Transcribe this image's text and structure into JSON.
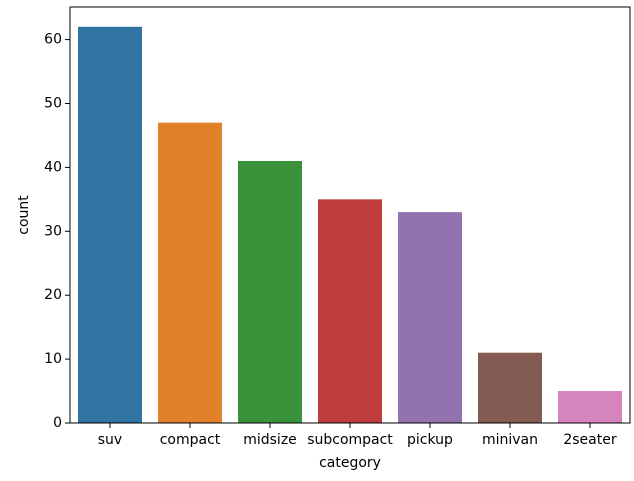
{
  "chart_data": {
    "type": "bar",
    "xlabel": "category",
    "ylabel": "count",
    "categories": [
      "suv",
      "compact",
      "midsize",
      "subcompact",
      "pickup",
      "minivan",
      "2seater"
    ],
    "values": [
      62,
      47,
      41,
      35,
      33,
      11,
      5
    ],
    "colors": [
      "#3274a1",
      "#e1812c",
      "#3a923a",
      "#c03d3e",
      "#9372b2",
      "#845b53",
      "#d684bd"
    ],
    "ylim": [
      0,
      65.1
    ],
    "yticks": [
      0,
      10,
      20,
      30,
      40,
      50,
      60
    ]
  }
}
